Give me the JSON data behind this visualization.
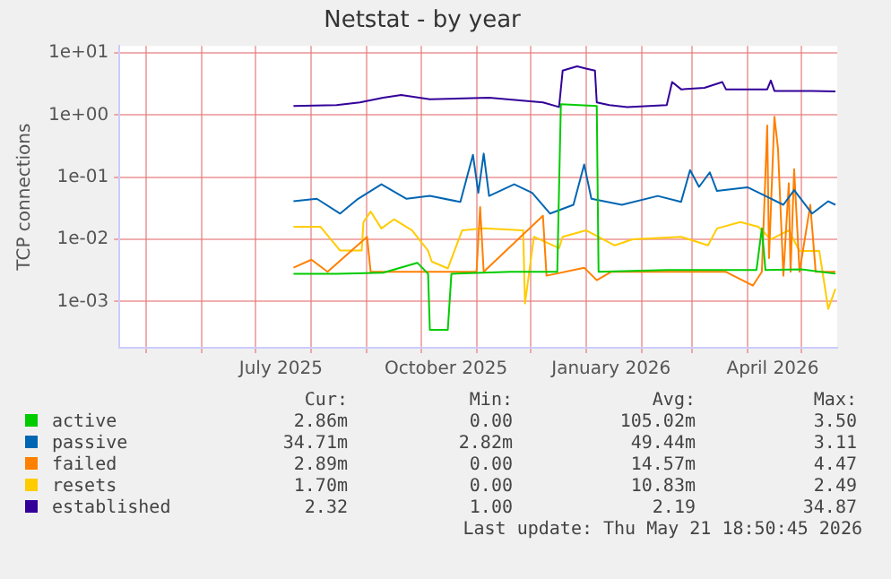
{
  "chart_data": {
    "type": "line",
    "title": "Netstat - by year",
    "ylabel": "TCP connections",
    "log": "y",
    "grid": true,
    "legend": "bottom",
    "marker": "none",
    "line_style": "solid",
    "xlim": [
      "2025-04-16",
      "2026-05-21"
    ],
    "ylim": [
      0.00018,
      13
    ],
    "yticks": [
      {
        "value": 0.001,
        "label": "1e-03"
      },
      {
        "value": 0.01,
        "label": "1e-02"
      },
      {
        "value": 0.1,
        "label": "1e-01"
      },
      {
        "value": 1,
        "label": "1e+00"
      },
      {
        "value": 10,
        "label": "1e+01"
      }
    ],
    "xticks": [
      {
        "value": "2025-05-01",
        "label": null
      },
      {
        "value": "2025-06-01",
        "label": null
      },
      {
        "value": "2025-07-01",
        "label": null
      },
      {
        "value": "2025-07-15",
        "label": "July 2025"
      },
      {
        "value": "2025-08-01",
        "label": null
      },
      {
        "value": "2025-09-01",
        "label": null
      },
      {
        "value": "2025-10-01",
        "label": null
      },
      {
        "value": "2025-10-15",
        "label": "October 2025"
      },
      {
        "value": "2025-11-01",
        "label": null
      },
      {
        "value": "2025-12-01",
        "label": null
      },
      {
        "value": "2026-01-01",
        "label": null
      },
      {
        "value": "2026-01-15",
        "label": "January 2026"
      },
      {
        "value": "2026-02-01",
        "label": null
      },
      {
        "value": "2026-03-01",
        "label": null
      },
      {
        "value": "2026-04-01",
        "label": null
      },
      {
        "value": "2026-04-15",
        "label": "April 2026"
      },
      {
        "value": "2026-05-01",
        "label": null
      }
    ],
    "series": [
      {
        "name": "active",
        "color": "#00cc00",
        "x": [
          "2025-07-22",
          "2025-08-15",
          "2025-09-10",
          "2025-09-29",
          "2025-10-05",
          "2025-10-06",
          "2025-10-16",
          "2025-10-18",
          "2025-11-20",
          "2025-12-16",
          "2025-12-18",
          "2026-01-07",
          "2026-01-08",
          "2026-02-15",
          "2026-04-06",
          "2026-04-09",
          "2026-04-11",
          "2026-05-01",
          "2026-05-20"
        ],
        "values": [
          0.0028,
          0.0028,
          0.0029,
          0.0042,
          0.0028,
          0.00035,
          0.00035,
          0.0028,
          0.003,
          0.003,
          1.5,
          1.4,
          0.003,
          0.0032,
          0.0032,
          0.015,
          0.0032,
          0.0033,
          0.0028
        ]
      },
      {
        "name": "passive",
        "color": "#0066b3",
        "x": [
          "2025-07-22",
          "2025-08-04",
          "2025-08-17",
          "2025-08-27",
          "2025-09-09",
          "2025-09-23",
          "2025-10-06",
          "2025-10-23",
          "2025-10-30",
          "2025-11-02",
          "2025-11-05",
          "2025-11-08",
          "2025-11-22",
          "2025-12-02",
          "2025-12-12",
          "2025-12-25",
          "2025-12-31",
          "2026-01-04",
          "2026-01-21",
          "2026-02-10",
          "2026-02-23",
          "2026-02-28",
          "2026-03-05",
          "2026-03-11",
          "2026-03-15",
          "2026-04-01",
          "2026-04-11",
          "2026-04-21",
          "2026-04-27",
          "2026-05-07",
          "2026-05-16",
          "2026-05-20"
        ],
        "values": [
          0.041,
          0.045,
          0.026,
          0.045,
          0.077,
          0.045,
          0.05,
          0.04,
          0.23,
          0.056,
          0.24,
          0.05,
          0.077,
          0.056,
          0.026,
          0.036,
          0.16,
          0.045,
          0.036,
          0.05,
          0.04,
          0.13,
          0.07,
          0.12,
          0.06,
          0.069,
          0.05,
          0.036,
          0.062,
          0.026,
          0.041,
          0.036
        ]
      },
      {
        "name": "failed",
        "color": "#ff8000",
        "x": [
          "2025-07-22",
          "2025-08-01",
          "2025-08-10",
          "2025-09-01",
          "2025-09-03",
          "2025-09-29",
          "2025-11-01",
          "2025-11-03",
          "2025-11-05",
          "2025-12-08",
          "2025-12-10",
          "2025-12-31",
          "2026-01-07",
          "2026-01-15",
          "2026-03-20",
          "2026-04-04",
          "2026-04-09",
          "2026-04-12",
          "2026-04-13",
          "2026-04-16",
          "2026-04-18",
          "2026-04-21",
          "2026-04-24",
          "2026-04-25",
          "2026-04-27",
          "2026-04-30",
          "2026-05-06",
          "2026-05-09",
          "2026-05-20"
        ],
        "values": [
          0.0035,
          0.0047,
          0.003,
          0.011,
          0.003,
          0.003,
          0.003,
          0.033,
          0.003,
          0.024,
          0.0026,
          0.0035,
          0.0022,
          0.003,
          0.003,
          0.0018,
          0.003,
          0.68,
          0.005,
          0.94,
          0.29,
          0.0026,
          0.08,
          0.003,
          0.135,
          0.003,
          0.036,
          0.003,
          0.003
        ]
      },
      {
        "name": "resets",
        "color": "#ffcc00",
        "x": [
          "2025-07-22",
          "2025-08-06",
          "2025-08-17",
          "2025-08-29",
          "2025-08-30",
          "2025-09-03",
          "2025-09-09",
          "2025-09-16",
          "2025-09-26",
          "2025-10-05",
          "2025-10-07",
          "2025-10-16",
          "2025-10-24",
          "2025-11-05",
          "2025-11-27",
          "2025-11-28",
          "2025-12-03",
          "2025-12-17",
          "2025-12-19",
          "2026-01-01",
          "2026-01-17",
          "2026-01-27",
          "2026-02-23",
          "2026-03-10",
          "2026-03-15",
          "2026-03-28",
          "2026-04-07",
          "2026-04-14",
          "2026-04-24",
          "2026-04-30",
          "2026-05-11",
          "2026-05-16",
          "2026-05-20"
        ],
        "values": [
          0.016,
          0.016,
          0.0066,
          0.0066,
          0.019,
          0.028,
          0.015,
          0.021,
          0.014,
          0.0066,
          0.0044,
          0.0034,
          0.014,
          0.015,
          0.014,
          0.00093,
          0.011,
          0.0072,
          0.011,
          0.014,
          0.008,
          0.01,
          0.011,
          0.008,
          0.015,
          0.019,
          0.016,
          0.01,
          0.014,
          0.0065,
          0.0065,
          0.00076,
          0.0016
        ]
      },
      {
        "name": "established",
        "color": "#330099",
        "x": [
          "2025-07-22",
          "2025-08-15",
          "2025-08-28",
          "2025-09-10",
          "2025-09-20",
          "2025-10-06",
          "2025-11-08",
          "2025-12-08",
          "2025-12-17",
          "2025-12-19",
          "2025-12-27",
          "2026-01-01",
          "2026-01-06",
          "2026-01-07",
          "2026-01-14",
          "2026-01-24",
          "2026-02-15",
          "2026-02-18",
          "2026-02-23",
          "2026-03-08",
          "2026-03-18",
          "2026-03-20",
          "2026-04-12",
          "2026-04-14",
          "2026-04-16",
          "2026-05-07",
          "2026-05-20"
        ],
        "values": [
          1.4,
          1.45,
          1.6,
          1.9,
          2.1,
          1.8,
          1.9,
          1.6,
          1.35,
          5.2,
          6.1,
          5.6,
          5.2,
          1.6,
          1.45,
          1.35,
          1.45,
          3.4,
          2.6,
          2.75,
          3.4,
          2.6,
          2.6,
          3.6,
          2.45,
          2.45,
          2.4
        ]
      }
    ],
    "annotations": [
      "Cur:",
      "Min:",
      "Avg:",
      "Max:",
      "2.86m",
      "0.00",
      "105.02m",
      "3.50",
      "34.71m",
      "2.82m",
      "49.44m",
      "3.11",
      "2.89m",
      "0.00",
      "14.57m",
      "4.47",
      "1.70m",
      "0.00",
      "10.83m",
      "2.49",
      "2.32",
      "1.00",
      "2.19",
      "34.87",
      "Last update: Thu May 21 18:50:45 2026"
    ]
  }
}
